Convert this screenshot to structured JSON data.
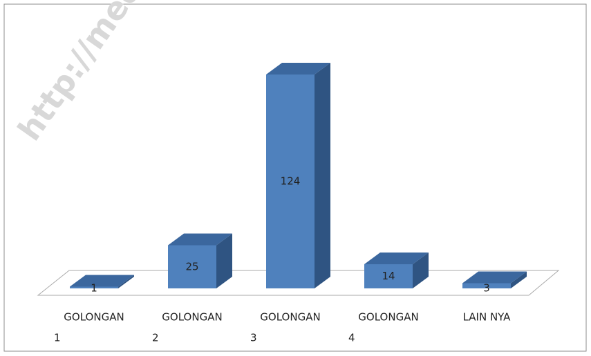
{
  "chart_data": {
    "type": "bar3d",
    "watermark": "http://mede",
    "categories": [
      [
        "GOLONGAN",
        "1"
      ],
      [
        "GOLONGAN",
        "2"
      ],
      [
        "GOLONGAN",
        "3"
      ],
      [
        "GOLONGAN",
        "4"
      ],
      [
        "LAIN NYA"
      ]
    ],
    "values": [
      1,
      25,
      124,
      14,
      3
    ],
    "color": "#4f81bd"
  }
}
